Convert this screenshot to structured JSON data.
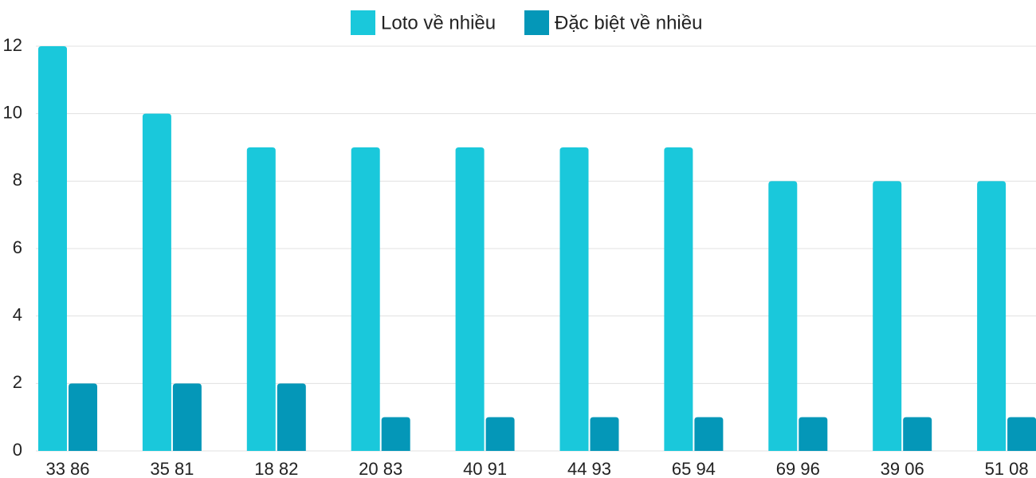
{
  "chart_data": {
    "type": "bar",
    "categories": [
      "33 86",
      "35 81",
      "18 82",
      "20 83",
      "40 91",
      "44 93",
      "65 94",
      "69 96",
      "39 06",
      "51 08"
    ],
    "series": [
      {
        "name": "Loto về nhiều",
        "color": "#1ac8db",
        "values": [
          12,
          10,
          9,
          9,
          9,
          9,
          9,
          8,
          8,
          8
        ]
      },
      {
        "name": "Đặc biệt về nhiều",
        "color": "#0497b8",
        "values": [
          2,
          2,
          2,
          1,
          1,
          1,
          1,
          1,
          1,
          1
        ]
      }
    ],
    "ylim": [
      0,
      12
    ],
    "yticks": [
      0,
      2,
      4,
      6,
      8,
      10,
      12
    ],
    "grid": true
  }
}
